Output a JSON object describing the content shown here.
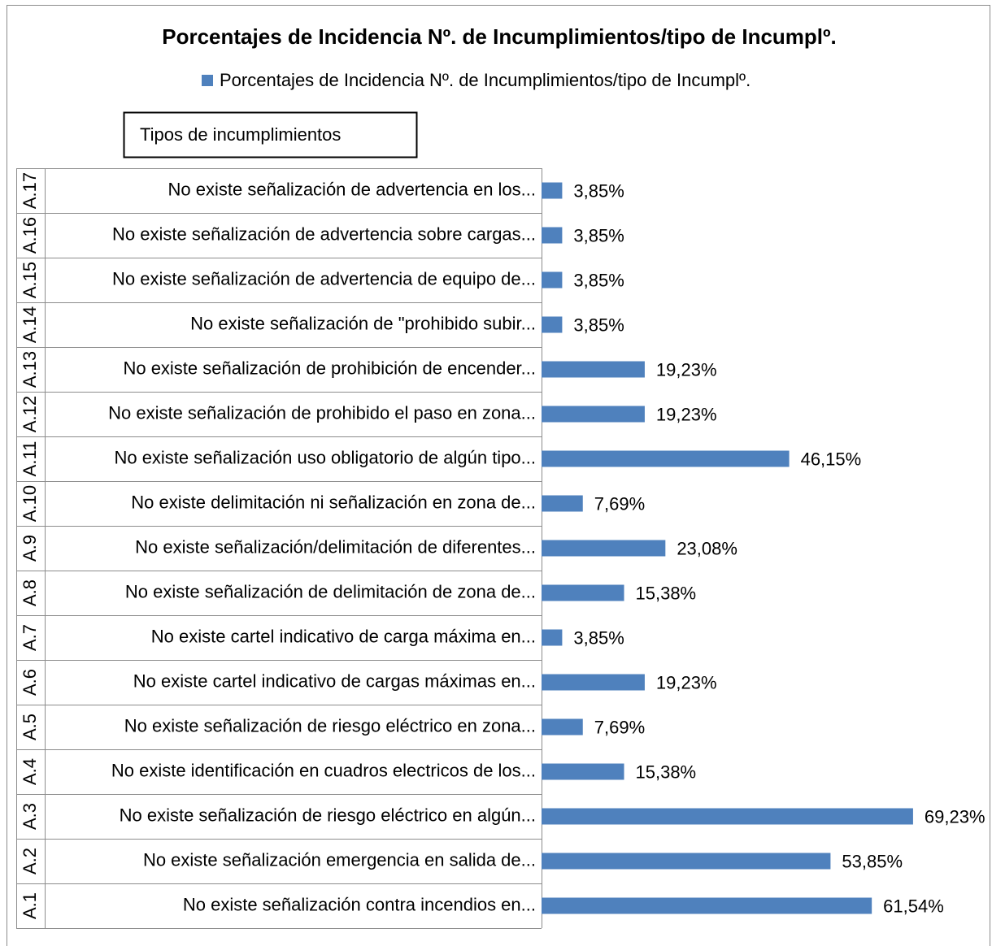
{
  "chart_data": {
    "type": "bar",
    "orientation": "horizontal",
    "title": "Porcentajes de Incidencia Nº. de Incumplimientos/tipo de Incumplº.",
    "y_label": "Tipos de incumplimientos",
    "groups": [
      "A.1",
      "A.2",
      "A.3",
      "A.4",
      "A.5",
      "A.6",
      "A.7",
      "A.8",
      "A.9",
      "A.10",
      "A.11",
      "A.12",
      "A.13",
      "A.14",
      "A.15",
      "A.16",
      "A.17"
    ],
    "categories": [
      "No existe señalización contra incendios en...",
      "No existe señalización emergencia en salida de...",
      "No existe señalización de riesgo eléctrico en algún...",
      "No existe identificación en cuadros electricos de los...",
      "No existe señalización de riesgo eléctrico en zona...",
      "No existe cartel indicativo de cargas máximas en...",
      "No existe cartel indicativo de carga máxima en...",
      "No existe señalización de delimitación de zona de...",
      "No existe señalización/delimitación de diferentes...",
      "No existe delimitación ni señalización en zona de...",
      "No existe señalización uso obligatorio de algún tipo...",
      "No existe señalización de prohibido el paso en zona...",
      "No existe señalización de prohibición de encender...",
      "No existe señalización de \"prohibido subir...",
      "No existe señalización de advertencia de equipo de...",
      "No existe señalización de advertencia sobre cargas...",
      "No existe señalización de advertencia en los..."
    ],
    "series": [
      {
        "name": "Porcentajes de Incidencia Nº. de Incumplimientos/tipo de Incumplº.",
        "color": "#4f81bd",
        "values": [
          61.54,
          53.85,
          69.23,
          15.38,
          7.69,
          19.23,
          3.85,
          15.38,
          23.08,
          7.69,
          46.15,
          19.23,
          19.23,
          3.85,
          3.85,
          3.85,
          3.85
        ],
        "value_labels": [
          "61,54%",
          "53,85%",
          "69,23%",
          "15,38%",
          "7,69%",
          "19,23%",
          "3,85%",
          "15,38%",
          "23,08%",
          "7,69%",
          "46,15%",
          "19,23%",
          "19,23%",
          "3,85%",
          "3,85%",
          "3,85%",
          "3,85%"
        ]
      }
    ],
    "xlim": [
      0,
      70
    ],
    "legend": "top"
  }
}
